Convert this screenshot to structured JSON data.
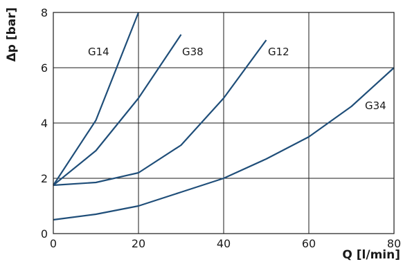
{
  "chart_data": {
    "type": "line",
    "title": "",
    "xlabel": "Q [l/min]",
    "ylabel": "Δp [bar]",
    "xlim": [
      0,
      80
    ],
    "ylim": [
      0,
      8
    ],
    "x_ticks": [
      "0",
      "20",
      "40",
      "60",
      "80"
    ],
    "y_ticks": [
      "0",
      "2",
      "4",
      "6",
      "8"
    ],
    "grid": true,
    "line_color": "#1f4e79",
    "series": [
      {
        "name": "G14",
        "x": [
          0,
          10,
          20
        ],
        "y": [
          1.75,
          4.1,
          8.0
        ]
      },
      {
        "name": "G38",
        "x": [
          0,
          10,
          20,
          30
        ],
        "y": [
          1.75,
          3.0,
          4.9,
          7.2
        ]
      },
      {
        "name": "G12",
        "x": [
          0,
          10,
          20,
          30,
          40,
          50
        ],
        "y": [
          1.75,
          1.85,
          2.2,
          3.2,
          4.9,
          7.0
        ]
      },
      {
        "name": "G34",
        "x": [
          0,
          10,
          20,
          30,
          40,
          50,
          60,
          70,
          80
        ],
        "y": [
          0.5,
          0.7,
          1.0,
          1.5,
          2.0,
          2.7,
          3.5,
          4.6,
          6.0
        ]
      }
    ]
  }
}
